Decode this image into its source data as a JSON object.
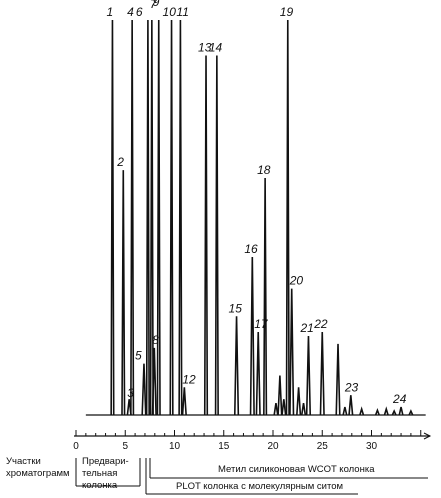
{
  "chart_data": {
    "type": "line",
    "description_free": true,
    "x_ticks": [
      0,
      5,
      10,
      15,
      20,
      25,
      30
    ],
    "xlim": [
      0,
      35.5
    ],
    "peaks": [
      {
        "label": "1",
        "t": 3.7,
        "h": 100
      },
      {
        "label": "2",
        "t": 4.8,
        "h": 62
      },
      {
        "label": "3",
        "t": 5.4,
        "h": 4
      },
      {
        "label": "4",
        "t": 5.7,
        "h": 100
      },
      {
        "label": "5",
        "t": 6.9,
        "h": 13
      },
      {
        "label": "6",
        "t": 7.3,
        "h": 100
      },
      {
        "label": "7",
        "t": 7.7,
        "h": 100
      },
      {
        "label": "8",
        "t": 7.95,
        "h": 17
      },
      {
        "label": "9",
        "t": 8.4,
        "h": 100
      },
      {
        "label": "10",
        "t": 9.7,
        "h": 100
      },
      {
        "label": "11",
        "t": 10.6,
        "h": 100
      },
      {
        "label": "12",
        "t": 11.0,
        "h": 7
      },
      {
        "label": "13",
        "t": 13.2,
        "h": 91
      },
      {
        "label": "14",
        "t": 14.3,
        "h": 91
      },
      {
        "label": "15",
        "t": 16.3,
        "h": 25
      },
      {
        "label": "16",
        "t": 17.9,
        "h": 40
      },
      {
        "label": "17",
        "t": 18.5,
        "h": 21
      },
      {
        "label": "18",
        "t": 19.2,
        "h": 60
      },
      {
        "label": "19",
        "t": 21.5,
        "h": 100
      },
      {
        "label": "20",
        "t": 21.9,
        "h": 32
      },
      {
        "label": "21",
        "t": 23.6,
        "h": 20
      },
      {
        "label": "22",
        "t": 25.0,
        "h": 21
      },
      {
        "label": "23",
        "t": 27.9,
        "h": 5
      },
      {
        "label": "24",
        "t": 33.0,
        "h": 2
      }
    ],
    "minor_peaks": [
      {
        "t": 20.3,
        "h": 3
      },
      {
        "t": 20.7,
        "h": 10
      },
      {
        "t": 21.1,
        "h": 4
      },
      {
        "t": 22.6,
        "h": 7
      },
      {
        "t": 23.1,
        "h": 3
      },
      {
        "t": 26.6,
        "h": 18
      },
      {
        "t": 27.3,
        "h": 2
      },
      {
        "t": 29.0,
        "h": 1.5
      },
      {
        "t": 30.6,
        "h": 1.2
      },
      {
        "t": 31.5,
        "h": 1.5
      },
      {
        "t": 32.3,
        "h": 1
      },
      {
        "t": 34.0,
        "h": 1
      }
    ]
  },
  "sections": {
    "row_title": "Участки хроматограмм",
    "precolumn": "Предвари- тельная колонка",
    "wcot": "Метил силиконовая WCOT колонка",
    "plot": "PLOT колонка с молекулярным ситом"
  },
  "colors": {
    "ink": "#111111",
    "background": "#ffffff"
  }
}
